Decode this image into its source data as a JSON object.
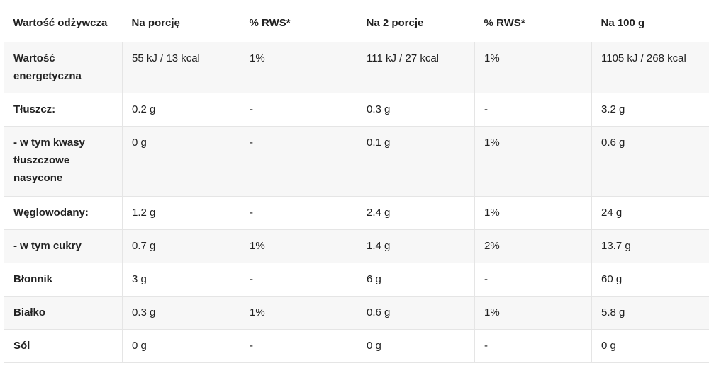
{
  "headers": [
    "Wartość odżywcza",
    "Na porcję",
    "% RWS*",
    "Na 2 porcje",
    "% RWS*",
    "Na 100 g"
  ],
  "rows": [
    [
      "Wartość energetyczna",
      "55 kJ / 13 kcal",
      "1%",
      "111 kJ / 27 kcal",
      "1%",
      "1105 kJ / 268 kcal"
    ],
    [
      "Tłuszcz:",
      "0.2 g",
      "-",
      "0.3 g",
      "-",
      "3.2 g"
    ],
    [
      "- w tym kwasy tłuszczowe nasycone",
      "0 g",
      "-",
      "0.1 g",
      "1%",
      "0.6 g"
    ],
    [
      "Węglowodany:",
      "1.2 g",
      "-",
      "2.4 g",
      "1%",
      "24 g"
    ],
    [
      "- w tym cukry",
      "0.7 g",
      "1%",
      "1.4 g",
      "2%",
      "13.7 g"
    ],
    [
      "Błonnik",
      "3 g",
      "-",
      "6 g",
      "-",
      "60 g"
    ],
    [
      "Białko",
      "0.3 g",
      "1%",
      "0.6 g",
      "1%",
      "5.8 g"
    ],
    [
      "Sól",
      "0 g",
      "-",
      "0 g",
      "-",
      "0 g"
    ]
  ]
}
